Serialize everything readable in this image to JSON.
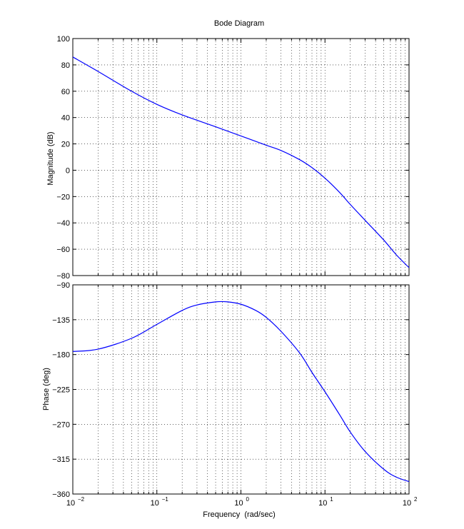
{
  "chart_data": [
    {
      "type": "line",
      "title": "Bode Diagram",
      "ylabel": "Magnitude (dB)",
      "xlabel": "",
      "xscale": "log",
      "xlim": [
        0.01,
        100
      ],
      "ylim": [
        -80,
        100
      ],
      "yticks": [
        -80,
        -60,
        -40,
        -20,
        0,
        20,
        40,
        60,
        80,
        100
      ],
      "grid": true,
      "line_color": "#0000ff",
      "x": [
        0.01,
        0.02,
        0.05,
        0.1,
        0.2,
        0.5,
        1,
        2,
        3,
        5,
        7,
        10,
        15,
        20,
        30,
        50,
        70,
        100
      ],
      "series": [
        {
          "values": [
            86,
            75,
            60,
            50,
            42,
            33,
            26,
            19,
            15,
            8,
            2,
            -6,
            -17,
            -26,
            -38,
            -53,
            -64,
            -74
          ]
        }
      ]
    },
    {
      "type": "line",
      "title": "",
      "xlabel": "Frequency  (rad/sec)",
      "ylabel": "Phase (deg)",
      "xscale": "log",
      "xlim": [
        0.01,
        100
      ],
      "ylim": [
        -360,
        -90
      ],
      "yticks": [
        -360,
        -315,
        -270,
        -225,
        -180,
        -135,
        -90
      ],
      "xticks": [
        0.01,
        0.1,
        1,
        10,
        100
      ],
      "xtick_labels": [
        {
          "base": "10",
          "exp": "-2"
        },
        {
          "base": "10",
          "exp": "-1"
        },
        {
          "base": "10",
          "exp": "0"
        },
        {
          "base": "10",
          "exp": "1"
        },
        {
          "base": "10",
          "exp": "2"
        }
      ],
      "grid": true,
      "line_color": "#0000ff",
      "x": [
        0.01,
        0.02,
        0.05,
        0.1,
        0.2,
        0.3,
        0.5,
        0.7,
        1,
        1.5,
        2,
        3,
        5,
        7,
        10,
        15,
        20,
        30,
        50,
        70,
        100
      ],
      "series": [
        {
          "values": [
            -176,
            -173,
            -159,
            -141,
            -123,
            -116,
            -112,
            -112,
            -115,
            -123,
            -132,
            -150,
            -178,
            -203,
            -228,
            -258,
            -280,
            -305,
            -328,
            -338,
            -344
          ]
        }
      ]
    }
  ]
}
